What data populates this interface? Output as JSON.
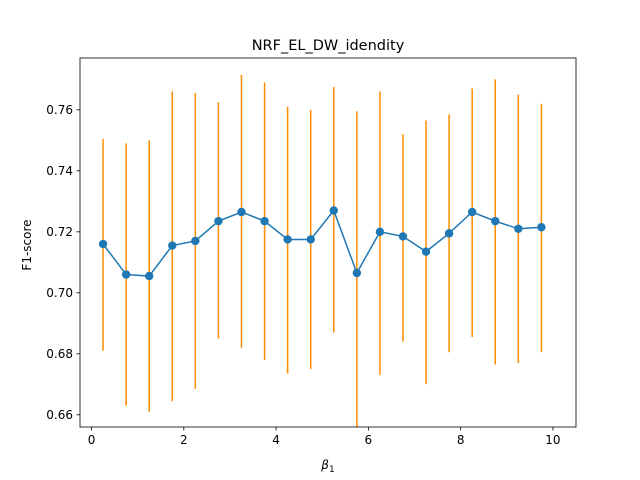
{
  "chart_data": {
    "type": "line",
    "title": "NRF_EL_DW_idendity",
    "xlabel": "β",
    "xlabel_sub": "1",
    "ylabel": "F1-score",
    "xlim": [
      -0.25,
      10.5
    ],
    "ylim": [
      0.656,
      0.777
    ],
    "xticks": [
      0,
      2,
      4,
      6,
      8,
      10
    ],
    "yticks": [
      0.66,
      0.68,
      0.7,
      0.72,
      0.74,
      0.76
    ],
    "ytick_labels": [
      "0.66",
      "0.68",
      "0.70",
      "0.72",
      "0.74",
      "0.76"
    ],
    "grid": false,
    "series": [
      {
        "x": [
          0.25,
          0.75,
          1.25,
          1.75,
          2.25,
          2.75,
          3.25,
          3.75,
          4.25,
          4.75,
          5.25,
          5.75,
          6.25,
          6.75,
          7.25,
          7.75,
          8.25,
          8.75,
          9.25,
          9.75
        ],
        "values": [
          0.716,
          0.706,
          0.7055,
          0.7155,
          0.717,
          0.7235,
          0.7265,
          0.7235,
          0.7175,
          0.7175,
          0.727,
          0.7065,
          0.72,
          0.7185,
          0.7135,
          0.7195,
          0.7265,
          0.7235,
          0.721,
          0.7215
        ],
        "err_low": [
          0.681,
          0.663,
          0.661,
          0.6645,
          0.6685,
          0.685,
          0.682,
          0.678,
          0.6735,
          0.675,
          0.687,
          0.656,
          0.673,
          0.684,
          0.67,
          0.6805,
          0.6855,
          0.6765,
          0.677,
          0.6805
        ],
        "err_high": [
          0.7505,
          0.749,
          0.75,
          0.766,
          0.7655,
          0.7625,
          0.7715,
          0.769,
          0.761,
          0.76,
          0.7675,
          0.7595,
          0.766,
          0.752,
          0.7565,
          0.7585,
          0.767,
          0.77,
          0.765,
          0.762
        ]
      }
    ],
    "colors": {
      "line": "#1f77b4",
      "errorbar": "#ff8c00"
    }
  }
}
